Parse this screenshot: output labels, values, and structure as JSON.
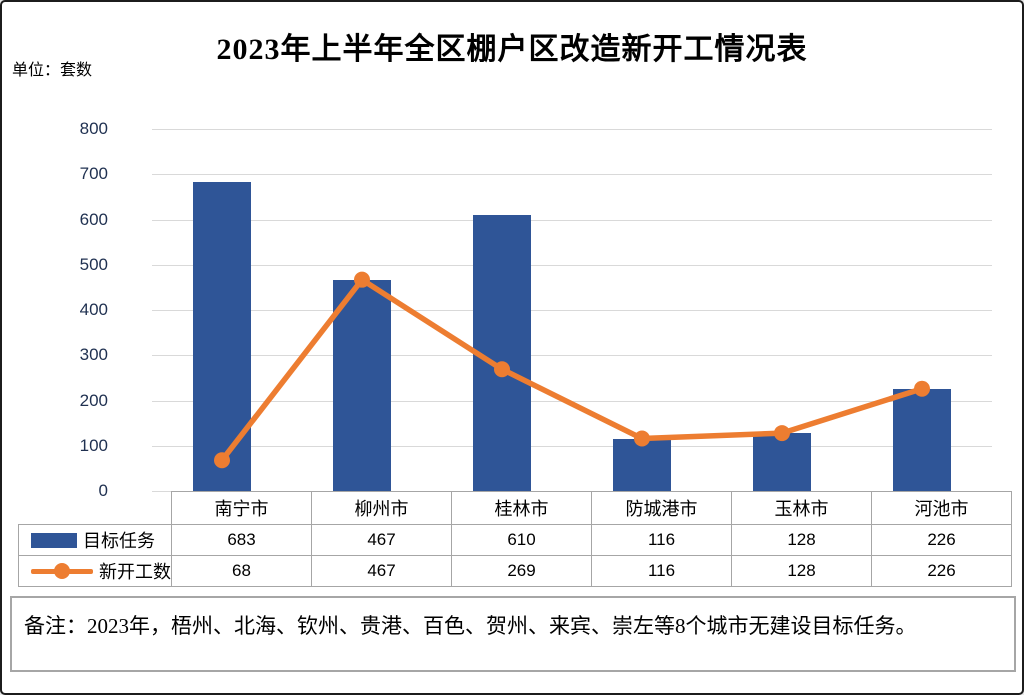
{
  "title": "2023年上半年全区棚户区改造新开工情况表",
  "unit_label": "单位：套数",
  "note": "备注：2023年，梧州、北海、钦州、贵港、百色、贺州、来宾、崇左等8个城市无建设目标任务。",
  "colors": {
    "bar": "#2F5597",
    "line": "#ED7D31",
    "grid": "#D9D9D9",
    "axis_text": "#1F3050",
    "table_border": "#A6A6A6"
  },
  "chart_data": {
    "type": "bar",
    "combo": "bar+line",
    "title": "2023年上半年全区棚户区改造新开工情况表",
    "xlabel": "",
    "ylabel": "套数",
    "ylim": [
      0,
      800
    ],
    "ytick_step": 100,
    "grid": true,
    "legend_position": "table-left",
    "categories": [
      "南宁市",
      "柳州市",
      "桂林市",
      "防城港市",
      "玉林市",
      "河池市"
    ],
    "series": [
      {
        "name": "目标任务",
        "kind": "bar",
        "color": "#2F5597",
        "values": [
          683,
          467,
          610,
          116,
          128,
          226
        ]
      },
      {
        "name": "新开工数",
        "kind": "line",
        "color": "#ED7D31",
        "values": [
          68,
          467,
          269,
          116,
          128,
          226
        ]
      }
    ]
  }
}
